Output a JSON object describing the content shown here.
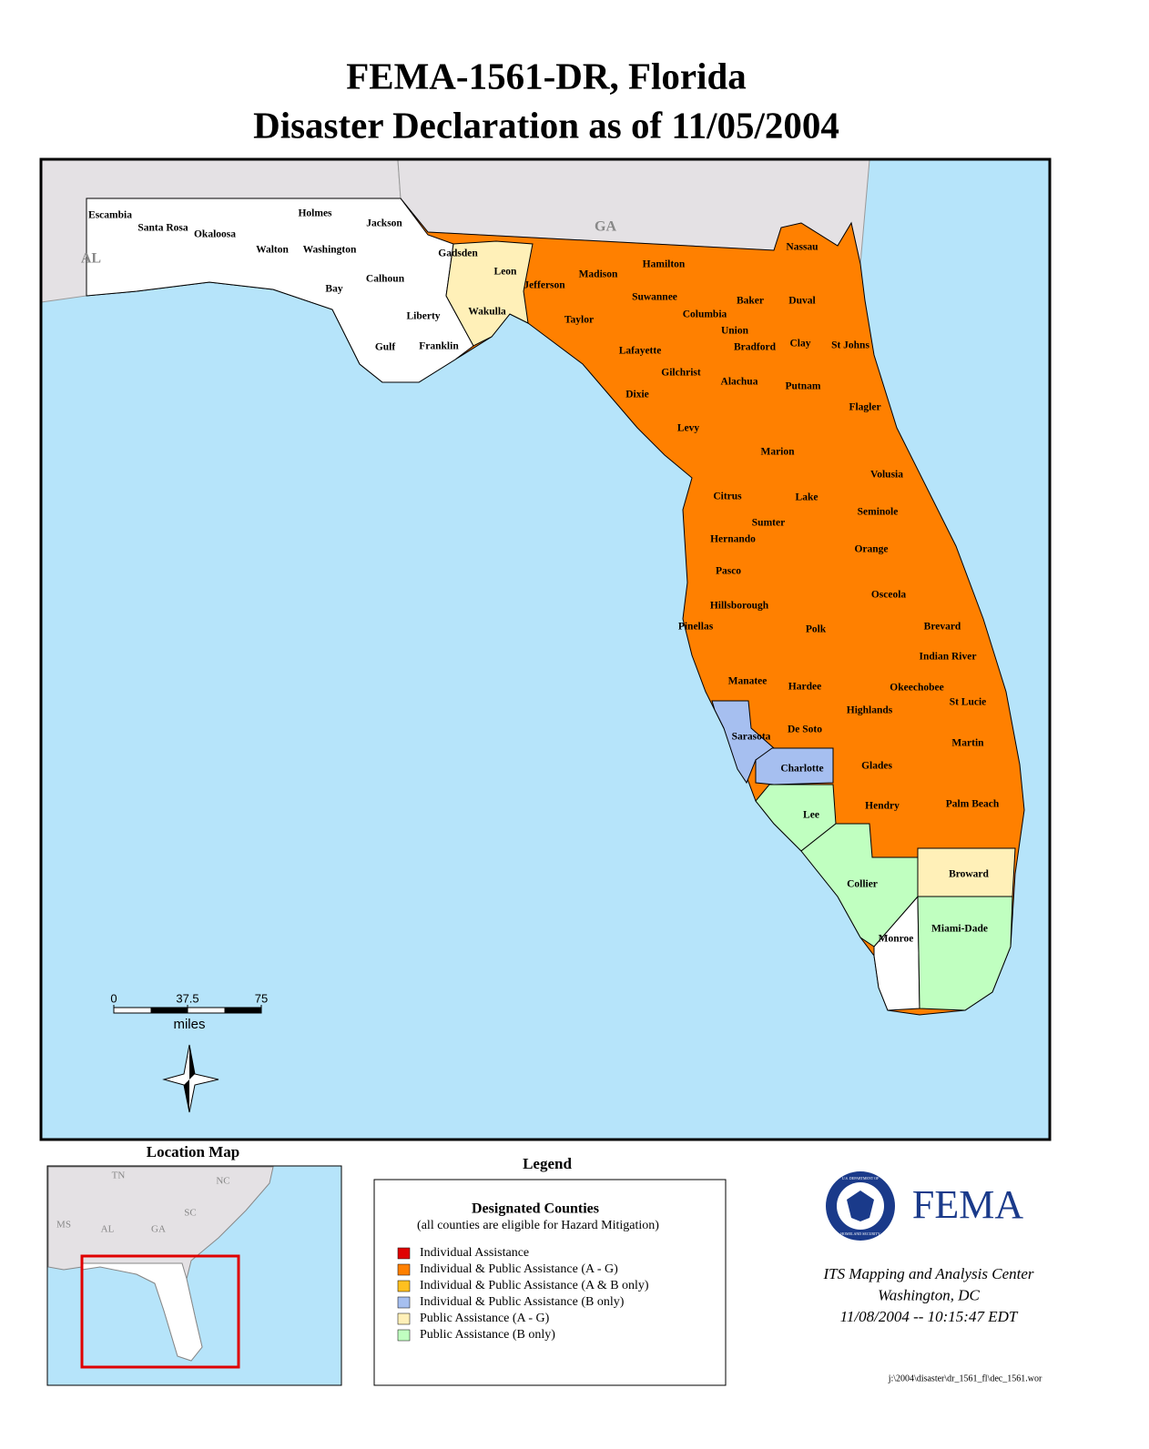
{
  "title": [
    "FEMA-1561-DR, Florida",
    "Disaster Declaration as of 11/05/2004"
  ],
  "states": [
    "AL",
    "GA"
  ],
  "legend": {
    "heading": "Legend",
    "title": "Designated Counties",
    "subtitle": "(all counties are eligible for Hazard Mitigation)",
    "items": [
      {
        "label": "Individual Assistance",
        "color": "#e00000",
        "counties": []
      },
      {
        "label": "Individual & Public Assistance (A - G)",
        "color": "#ff8000",
        "counties": [
          "Jefferson",
          "Madison",
          "Hamilton",
          "Suwannee",
          "Columbia",
          "Baker",
          "Nassau",
          "Duval",
          "Union",
          "Bradford",
          "Clay",
          "St Johns",
          "Taylor",
          "Lafayette",
          "Gilchrist",
          "Alachua",
          "Putnam",
          "Dixie",
          "Flagler",
          "Levy",
          "Marion",
          "Volusia",
          "Citrus",
          "Lake",
          "Sumter",
          "Seminole",
          "Hernando",
          "Orange",
          "Pasco",
          "Osceola",
          "Hillsborough",
          "Pinellas",
          "Polk",
          "Brevard",
          "Indian River",
          "Manatee",
          "Hardee",
          "Okeechobee",
          "St Lucie",
          "Highlands",
          "De Soto",
          "Martin",
          "Glades",
          "Hendry",
          "Palm Beach"
        ]
      },
      {
        "label": "Individual & Public Assistance (A & B only)",
        "color": "#ffc020",
        "counties": []
      },
      {
        "label": "Individual & Public Assistance (B only)",
        "color": "#a6bff0",
        "counties": [
          "Sarasota",
          "Charlotte"
        ]
      },
      {
        "label": "Public Assistance (A - G)",
        "color": "#fff0b8",
        "counties": [
          "Leon",
          "Wakulla",
          "Broward"
        ]
      },
      {
        "label": "Public Assistance (B only)",
        "color": "#c0ffc0",
        "counties": [
          "Lee",
          "Collier",
          "Miami-Dade"
        ]
      }
    ]
  },
  "undesignated_counties": [
    "Escambia",
    "Santa Rosa",
    "Okaloosa",
    "Walton",
    "Holmes",
    "Washington",
    "Jackson",
    "Bay",
    "Calhoun",
    "Gadsden",
    "Liberty",
    "Gulf",
    "Franklin",
    "Monroe"
  ],
  "scale_bar": {
    "ticks": [
      0,
      37.5,
      75
    ],
    "unit": "miles"
  },
  "location_map": {
    "title": "Location Map",
    "states": [
      "TN",
      "NC",
      "MS",
      "AL",
      "GA",
      "SC"
    ]
  },
  "logo": {
    "name": "FEMA",
    "seal": [
      "U.S. DEPARTMENT OF",
      "HOMELAND SECURITY"
    ]
  },
  "credits": [
    "ITS Mapping and Analysis Center",
    "Washington, DC",
    "11/08/2004  --  10:15:47 EDT"
  ],
  "file_path": "j:\\2004\\disaster\\dr_1561_fl\\dec_1561.wor"
}
